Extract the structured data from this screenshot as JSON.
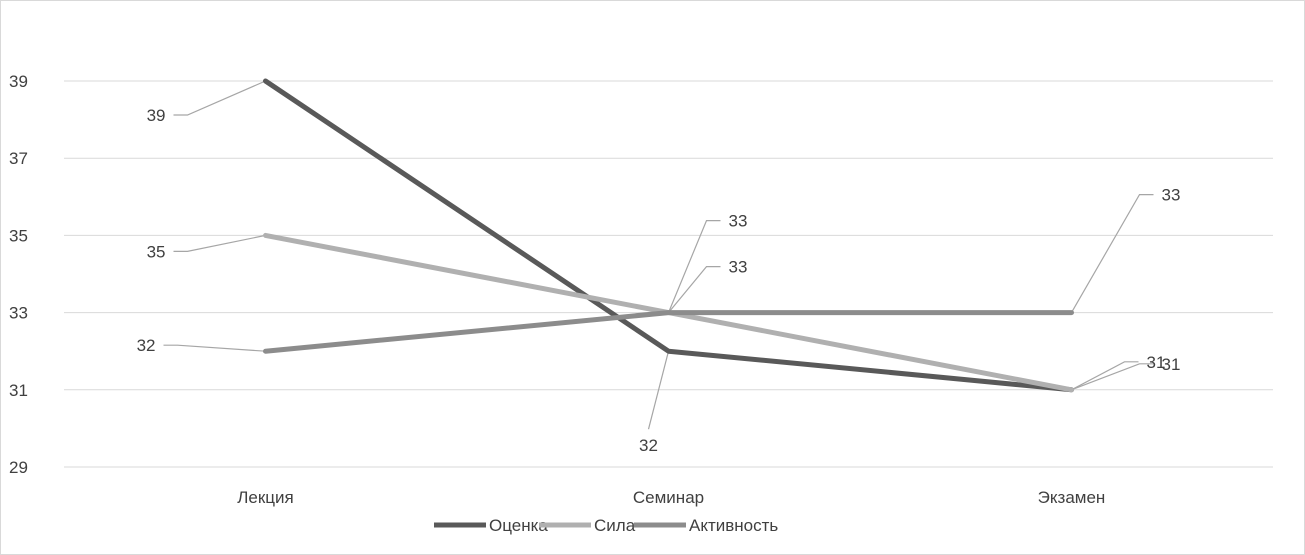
{
  "chart_data": {
    "type": "line",
    "categories": [
      "Лекция",
      "Семинар",
      "Экзамен"
    ],
    "series": [
      {
        "name": "Оценка",
        "values": [
          39,
          32,
          31
        ],
        "color": "#595959"
      },
      {
        "name": "Сила",
        "values": [
          35,
          33,
          31
        ],
        "color": "#b0b0b0"
      },
      {
        "name": "Активность",
        "values": [
          32,
          33,
          33
        ],
        "color": "#8c8c8c"
      }
    ],
    "y_ticks": [
      "29",
      "31",
      "33",
      "35",
      "37",
      "39"
    ],
    "ylim": [
      29,
      41
    ],
    "grid": true,
    "legend_position": "bottom",
    "data_labels": [
      {
        "series": "Оценка",
        "points": [
          "39",
          "32",
          "31"
        ]
      },
      {
        "series": "Сила",
        "points": [
          "35",
          "33",
          "31"
        ]
      },
      {
        "series": "Активность",
        "points": [
          "32",
          "33",
          "33"
        ]
      }
    ]
  }
}
